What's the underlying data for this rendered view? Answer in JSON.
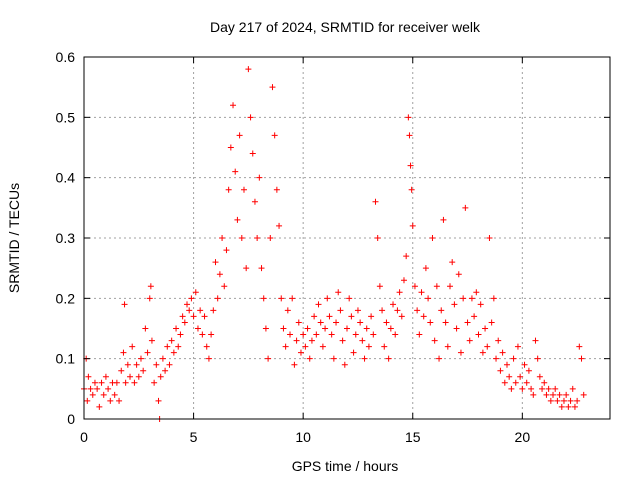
{
  "chart_data": {
    "type": "scatter",
    "title": "Day 217 of 2024, SRMTID for receiver welk",
    "xlabel": "GPS time / hours",
    "ylabel": "SRMTID / TECUs",
    "xlim": [
      0,
      24
    ],
    "ylim": [
      0,
      0.6
    ],
    "xticks": [
      0,
      5,
      10,
      15,
      20
    ],
    "xtick_labels": [
      "0",
      "5",
      "10",
      "15",
      "20"
    ],
    "yticks": [
      0,
      0.1,
      0.2,
      0.3,
      0.4,
      0.5,
      0.6
    ],
    "ytick_labels": [
      "0",
      "0.1",
      "0.2",
      "0.3",
      "0.4",
      "0.5",
      "0.6"
    ],
    "grid": true,
    "marker": "plus",
    "color": "#ff0000",
    "series": [
      {
        "name": "SRMTID",
        "points": [
          [
            0.0,
            0.05
          ],
          [
            0.1,
            0.1
          ],
          [
            0.15,
            0.03
          ],
          [
            0.2,
            0.07
          ],
          [
            0.3,
            0.05
          ],
          [
            0.4,
            0.04
          ],
          [
            0.5,
            0.06
          ],
          [
            0.6,
            0.05
          ],
          [
            0.7,
            0.02
          ],
          [
            0.8,
            0.06
          ],
          [
            0.9,
            0.04
          ],
          [
            1.0,
            0.07
          ],
          [
            1.1,
            0.05
          ],
          [
            1.2,
            0.03
          ],
          [
            1.3,
            0.06
          ],
          [
            1.4,
            0.04
          ],
          [
            1.5,
            0.06
          ],
          [
            1.6,
            0.03
          ],
          [
            1.7,
            0.08
          ],
          [
            1.8,
            0.11
          ],
          [
            1.85,
            0.19
          ],
          [
            1.9,
            0.06
          ],
          [
            2.0,
            0.09
          ],
          [
            2.1,
            0.07
          ],
          [
            2.2,
            0.12
          ],
          [
            2.3,
            0.06
          ],
          [
            2.4,
            0.09
          ],
          [
            2.5,
            0.07
          ],
          [
            2.6,
            0.1
          ],
          [
            2.7,
            0.08
          ],
          [
            2.8,
            0.15
          ],
          [
            2.9,
            0.11
          ],
          [
            3.0,
            0.2
          ],
          [
            3.05,
            0.22
          ],
          [
            3.1,
            0.13
          ],
          [
            3.2,
            0.06
          ],
          [
            3.3,
            0.09
          ],
          [
            3.4,
            0.03
          ],
          [
            3.45,
            0.0
          ],
          [
            3.5,
            0.07
          ],
          [
            3.6,
            0.1
          ],
          [
            3.7,
            0.08
          ],
          [
            3.8,
            0.12
          ],
          [
            3.9,
            0.09
          ],
          [
            4.0,
            0.13
          ],
          [
            4.1,
            0.11
          ],
          [
            4.2,
            0.15
          ],
          [
            4.3,
            0.12
          ],
          [
            4.4,
            0.14
          ],
          [
            4.5,
            0.17
          ],
          [
            4.6,
            0.16
          ],
          [
            4.7,
            0.19
          ],
          [
            4.8,
            0.18
          ],
          [
            4.9,
            0.2
          ],
          [
            5.0,
            0.17
          ],
          [
            5.1,
            0.21
          ],
          [
            5.2,
            0.15
          ],
          [
            5.3,
            0.18
          ],
          [
            5.4,
            0.14
          ],
          [
            5.5,
            0.17
          ],
          [
            5.6,
            0.12
          ],
          [
            5.7,
            0.1
          ],
          [
            5.8,
            0.14
          ],
          [
            5.9,
            0.18
          ],
          [
            6.0,
            0.26
          ],
          [
            6.1,
            0.2
          ],
          [
            6.2,
            0.24
          ],
          [
            6.3,
            0.3
          ],
          [
            6.4,
            0.22
          ],
          [
            6.5,
            0.28
          ],
          [
            6.6,
            0.38
          ],
          [
            6.7,
            0.45
          ],
          [
            6.8,
            0.52
          ],
          [
            6.9,
            0.41
          ],
          [
            7.0,
            0.33
          ],
          [
            7.1,
            0.47
          ],
          [
            7.2,
            0.3
          ],
          [
            7.3,
            0.38
          ],
          [
            7.4,
            0.25
          ],
          [
            7.5,
            0.58
          ],
          [
            7.6,
            0.5
          ],
          [
            7.7,
            0.44
          ],
          [
            7.8,
            0.36
          ],
          [
            7.9,
            0.3
          ],
          [
            8.0,
            0.4
          ],
          [
            8.1,
            0.25
          ],
          [
            8.2,
            0.2
          ],
          [
            8.3,
            0.15
          ],
          [
            8.4,
            0.1
          ],
          [
            8.5,
            0.3
          ],
          [
            8.6,
            0.55
          ],
          [
            8.7,
            0.47
          ],
          [
            8.8,
            0.38
          ],
          [
            8.9,
            0.32
          ],
          [
            9.0,
            0.2
          ],
          [
            9.1,
            0.15
          ],
          [
            9.2,
            0.12
          ],
          [
            9.3,
            0.18
          ],
          [
            9.4,
            0.14
          ],
          [
            9.5,
            0.2
          ],
          [
            9.6,
            0.09
          ],
          [
            9.7,
            0.13
          ],
          [
            9.8,
            0.16
          ],
          [
            9.9,
            0.11
          ],
          [
            10.0,
            0.14
          ],
          [
            10.1,
            0.12
          ],
          [
            10.2,
            0.15
          ],
          [
            10.3,
            0.1
          ],
          [
            10.4,
            0.13
          ],
          [
            10.5,
            0.17
          ],
          [
            10.6,
            0.14
          ],
          [
            10.7,
            0.19
          ],
          [
            10.8,
            0.16
          ],
          [
            10.9,
            0.12
          ],
          [
            11.0,
            0.15
          ],
          [
            11.1,
            0.2
          ],
          [
            11.2,
            0.17
          ],
          [
            11.3,
            0.14
          ],
          [
            11.4,
            0.1
          ],
          [
            11.5,
            0.16
          ],
          [
            11.6,
            0.21
          ],
          [
            11.7,
            0.18
          ],
          [
            11.8,
            0.13
          ],
          [
            11.9,
            0.09
          ],
          [
            12.0,
            0.15
          ],
          [
            12.1,
            0.2
          ],
          [
            12.2,
            0.17
          ],
          [
            12.3,
            0.11
          ],
          [
            12.4,
            0.14
          ],
          [
            12.5,
            0.18
          ],
          [
            12.6,
            0.16
          ],
          [
            12.7,
            0.13
          ],
          [
            12.8,
            0.1
          ],
          [
            12.9,
            0.15
          ],
          [
            13.0,
            0.12
          ],
          [
            13.1,
            0.17
          ],
          [
            13.2,
            0.14
          ],
          [
            13.3,
            0.36
          ],
          [
            13.4,
            0.3
          ],
          [
            13.5,
            0.22
          ],
          [
            13.6,
            0.18
          ],
          [
            13.7,
            0.12
          ],
          [
            13.8,
            0.16
          ],
          [
            13.9,
            0.1
          ],
          [
            14.0,
            0.15
          ],
          [
            14.1,
            0.19
          ],
          [
            14.2,
            0.14
          ],
          [
            14.3,
            0.18
          ],
          [
            14.4,
            0.21
          ],
          [
            14.5,
            0.17
          ],
          [
            14.6,
            0.23
          ],
          [
            14.7,
            0.27
          ],
          [
            14.8,
            0.5
          ],
          [
            14.85,
            0.47
          ],
          [
            14.9,
            0.42
          ],
          [
            14.95,
            0.38
          ],
          [
            15.0,
            0.32
          ],
          [
            15.1,
            0.22
          ],
          [
            15.2,
            0.18
          ],
          [
            15.3,
            0.14
          ],
          [
            15.4,
            0.21
          ],
          [
            15.5,
            0.17
          ],
          [
            15.6,
            0.25
          ],
          [
            15.7,
            0.2
          ],
          [
            15.8,
            0.16
          ],
          [
            15.9,
            0.3
          ],
          [
            16.0,
            0.13
          ],
          [
            16.1,
            0.22
          ],
          [
            16.2,
            0.1
          ],
          [
            16.3,
            0.18
          ],
          [
            16.4,
            0.33
          ],
          [
            16.5,
            0.16
          ],
          [
            16.6,
            0.12
          ],
          [
            16.7,
            0.22
          ],
          [
            16.8,
            0.26
          ],
          [
            16.9,
            0.19
          ],
          [
            17.0,
            0.15
          ],
          [
            17.1,
            0.24
          ],
          [
            17.2,
            0.11
          ],
          [
            17.3,
            0.2
          ],
          [
            17.4,
            0.35
          ],
          [
            17.5,
            0.16
          ],
          [
            17.6,
            0.13
          ],
          [
            17.7,
            0.2
          ],
          [
            17.8,
            0.17
          ],
          [
            17.9,
            0.21
          ],
          [
            18.0,
            0.14
          ],
          [
            18.1,
            0.19
          ],
          [
            18.2,
            0.11
          ],
          [
            18.3,
            0.15
          ],
          [
            18.4,
            0.12
          ],
          [
            18.5,
            0.3
          ],
          [
            18.6,
            0.16
          ],
          [
            18.7,
            0.2
          ],
          [
            18.8,
            0.1
          ],
          [
            18.9,
            0.13
          ],
          [
            19.0,
            0.08
          ],
          [
            19.1,
            0.11
          ],
          [
            19.2,
            0.06
          ],
          [
            19.3,
            0.09
          ],
          [
            19.4,
            0.07
          ],
          [
            19.5,
            0.05
          ],
          [
            19.6,
            0.1
          ],
          [
            19.7,
            0.06
          ],
          [
            19.8,
            0.12
          ],
          [
            19.9,
            0.07
          ],
          [
            20.0,
            0.05
          ],
          [
            20.1,
            0.09
          ],
          [
            20.2,
            0.06
          ],
          [
            20.3,
            0.08
          ],
          [
            20.4,
            0.05
          ],
          [
            20.5,
            0.04
          ],
          [
            20.6,
            0.13
          ],
          [
            20.7,
            0.1
          ],
          [
            20.8,
            0.07
          ],
          [
            20.9,
            0.05
          ],
          [
            21.0,
            0.06
          ],
          [
            21.1,
            0.04
          ],
          [
            21.2,
            0.05
          ],
          [
            21.3,
            0.03
          ],
          [
            21.4,
            0.04
          ],
          [
            21.5,
            0.05
          ],
          [
            21.6,
            0.03
          ],
          [
            21.7,
            0.04
          ],
          [
            21.8,
            0.02
          ],
          [
            21.9,
            0.03
          ],
          [
            22.0,
            0.04
          ],
          [
            22.1,
            0.02
          ],
          [
            22.2,
            0.03
          ],
          [
            22.3,
            0.05
          ],
          [
            22.4,
            0.02
          ],
          [
            22.5,
            0.03
          ],
          [
            22.6,
            0.12
          ],
          [
            22.7,
            0.1
          ],
          [
            22.8,
            0.04
          ]
        ]
      }
    ]
  }
}
